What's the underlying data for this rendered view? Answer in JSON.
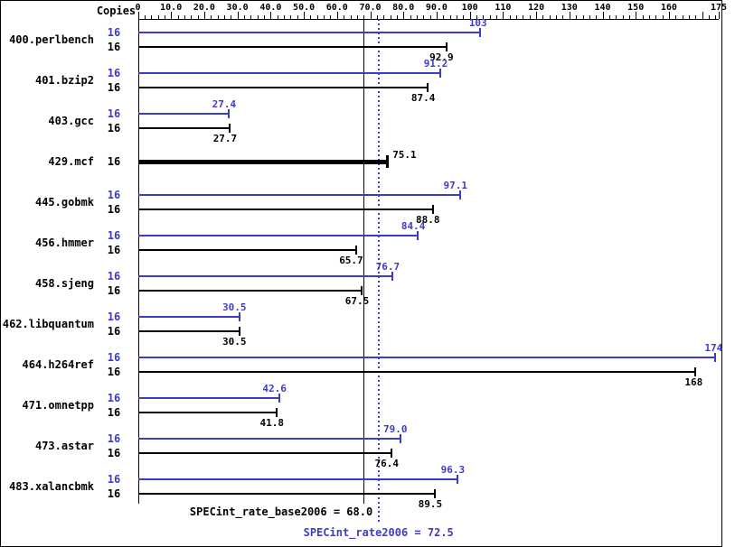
{
  "header": {
    "copies_label": "Copies"
  },
  "colors": {
    "peak": "#3c3cc8",
    "base": "#000000"
  },
  "axis": {
    "min": 0,
    "max": 175,
    "ticks": [
      {
        "value": 0,
        "label": "0"
      },
      {
        "value": 10,
        "label": "10.0"
      },
      {
        "value": 20,
        "label": "20.0"
      },
      {
        "value": 30,
        "label": "30.0"
      },
      {
        "value": 40,
        "label": "40.0"
      },
      {
        "value": 50,
        "label": "50.0"
      },
      {
        "value": 60,
        "label": "60.0"
      },
      {
        "value": 70,
        "label": "70.0"
      },
      {
        "value": 80,
        "label": "80.0"
      },
      {
        "value": 90,
        "label": "90.0"
      },
      {
        "value": 100,
        "label": "100"
      },
      {
        "value": 110,
        "label": "110"
      },
      {
        "value": 120,
        "label": "120"
      },
      {
        "value": 130,
        "label": "130"
      },
      {
        "value": 140,
        "label": "140"
      },
      {
        "value": 150,
        "label": "150"
      },
      {
        "value": 160,
        "label": "160"
      },
      {
        "value": 175,
        "label": "175"
      }
    ]
  },
  "benchmarks": [
    {
      "name": "400.perlbench",
      "rows": [
        {
          "type": "peak",
          "copies": "16",
          "value": 103,
          "label": "103"
        },
        {
          "type": "base",
          "copies": "16",
          "value": 92.9,
          "label": "92.9"
        }
      ]
    },
    {
      "name": "401.bzip2",
      "rows": [
        {
          "type": "peak",
          "copies": "16",
          "value": 91.2,
          "label": "91.2"
        },
        {
          "type": "base",
          "copies": "16",
          "value": 87.4,
          "label": "87.4"
        }
      ]
    },
    {
      "name": "403.gcc",
      "rows": [
        {
          "type": "peak",
          "copies": "16",
          "value": 27.4,
          "label": "27.4"
        },
        {
          "type": "base",
          "copies": "16",
          "value": 27.7,
          "label": "27.7"
        }
      ]
    },
    {
      "name": "429.mcf",
      "rows": [
        {
          "type": "both",
          "copies": "16",
          "value": 75.1,
          "label": "75.1"
        }
      ]
    },
    {
      "name": "445.gobmk",
      "rows": [
        {
          "type": "peak",
          "copies": "16",
          "value": 97.1,
          "label": "97.1"
        },
        {
          "type": "base",
          "copies": "16",
          "value": 88.8,
          "label": "88.8"
        }
      ]
    },
    {
      "name": "456.hmmer",
      "rows": [
        {
          "type": "peak",
          "copies": "16",
          "value": 84.4,
          "label": "84.4"
        },
        {
          "type": "base",
          "copies": "16",
          "value": 65.7,
          "label": "65.7"
        }
      ]
    },
    {
      "name": "458.sjeng",
      "rows": [
        {
          "type": "peak",
          "copies": "16",
          "value": 76.7,
          "label": "76.7"
        },
        {
          "type": "base",
          "copies": "16",
          "value": 67.5,
          "label": "67.5"
        }
      ]
    },
    {
      "name": "462.libquantum",
      "rows": [
        {
          "type": "peak",
          "copies": "16",
          "value": 30.5,
          "label": "30.5"
        },
        {
          "type": "base",
          "copies": "16",
          "value": 30.5,
          "label": "30.5"
        }
      ]
    },
    {
      "name": "464.h264ref",
      "rows": [
        {
          "type": "peak",
          "copies": "16",
          "value": 174,
          "label": "174"
        },
        {
          "type": "base",
          "copies": "16",
          "value": 168,
          "label": "168"
        }
      ]
    },
    {
      "name": "471.omnetpp",
      "rows": [
        {
          "type": "peak",
          "copies": "16",
          "value": 42.6,
          "label": "42.6"
        },
        {
          "type": "base",
          "copies": "16",
          "value": 41.8,
          "label": "41.8"
        }
      ]
    },
    {
      "name": "473.astar",
      "rows": [
        {
          "type": "peak",
          "copies": "16",
          "value": 79.0,
          "label": "79.0"
        },
        {
          "type": "base",
          "copies": "16",
          "value": 76.4,
          "label": "76.4"
        }
      ]
    },
    {
      "name": "483.xalancbmk",
      "rows": [
        {
          "type": "peak",
          "copies": "16",
          "value": 96.3,
          "label": "96.3"
        },
        {
          "type": "base",
          "copies": "16",
          "value": 89.5,
          "label": "89.5"
        }
      ]
    }
  ],
  "footer": {
    "base_label": "SPECint_rate_base2006 = 68.0",
    "peak_label": "SPECint_rate2006 = 72.5",
    "base_value": 68.0,
    "peak_value": 72.5
  },
  "chart_data": {
    "type": "bar",
    "orientation": "horizontal",
    "title": "",
    "xlabel": "",
    "ylabel": "Copies",
    "xlim": [
      0,
      175
    ],
    "copies_per_benchmark": 16,
    "categories": [
      "400.perlbench",
      "401.bzip2",
      "403.gcc",
      "429.mcf",
      "445.gobmk",
      "456.hmmer",
      "458.sjeng",
      "462.libquantum",
      "464.h264ref",
      "471.omnetpp",
      "473.astar",
      "483.xalancbmk"
    ],
    "series": [
      {
        "name": "peak (SPECint_rate2006)",
        "color": "#3c3cc8",
        "values": [
          103,
          91.2,
          27.4,
          75.1,
          97.1,
          84.4,
          76.7,
          30.5,
          174,
          42.6,
          79.0,
          96.3
        ]
      },
      {
        "name": "base (SPECint_rate_base2006)",
        "color": "#000000",
        "values": [
          92.9,
          87.4,
          27.7,
          75.1,
          88.8,
          65.7,
          67.5,
          30.5,
          168,
          41.8,
          76.4,
          89.5
        ]
      }
    ],
    "reference_lines": [
      {
        "label": "SPECint_rate_base2006",
        "value": 68.0,
        "style": "solid",
        "color": "#000000"
      },
      {
        "label": "SPECint_rate2006",
        "value": 72.5,
        "style": "dotted",
        "color": "#3c3cc8"
      }
    ],
    "legend_position": "none",
    "grid": false
  }
}
